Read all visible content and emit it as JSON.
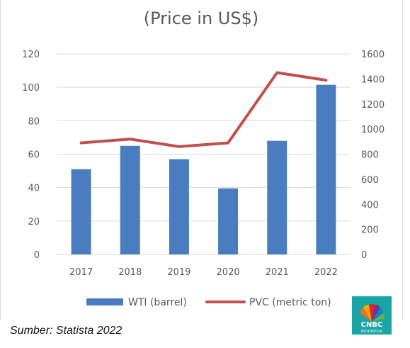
{
  "title": "(Price in US$)",
  "source": "Sumber: Statista 2022",
  "logo": {
    "name": "CNBC",
    "subtitle": "INDONESIA"
  },
  "colors": {
    "bar": "#4a7dbf",
    "line": "#c0504d",
    "grid": "#d9d9d9",
    "text": "#595959"
  },
  "chart_data": {
    "type": "bar",
    "categories": [
      "2017",
      "2018",
      "2019",
      "2020",
      "2021",
      "2022"
    ],
    "series": [
      {
        "name": "WTI (barrel)",
        "type": "bar",
        "axis": "left",
        "values": [
          51,
          65,
          57,
          39.5,
          68,
          101.5
        ]
      },
      {
        "name": "PVC (metric ton)",
        "type": "line",
        "axis": "right",
        "values": [
          890,
          920,
          860,
          890,
          1450,
          1390
        ]
      }
    ],
    "y_left": {
      "ylim": [
        0,
        120
      ],
      "ticks": [
        "0",
        "20",
        "40",
        "60",
        "80",
        "100",
        "120"
      ]
    },
    "y_right": {
      "ylim": [
        0,
        1600
      ],
      "ticks": [
        "0",
        "200",
        "400",
        "600",
        "800",
        "1000",
        "1200",
        "1400",
        "1600"
      ]
    },
    "grid": true,
    "legend": "bottom"
  }
}
